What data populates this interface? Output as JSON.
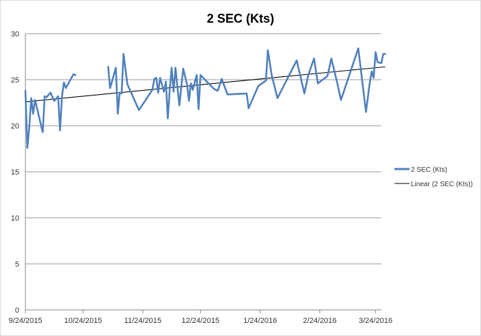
{
  "chart_data": {
    "type": "line",
    "title": "2 SEC (Kts)",
    "xlabel": "",
    "ylabel": "",
    "ylim": [
      0,
      30
    ],
    "yticks": [
      0,
      5,
      10,
      15,
      20,
      25,
      30
    ],
    "xlim": [
      "2015-09-24",
      "2016-03-27"
    ],
    "xticks": [
      "2015-09-24",
      "2015-10-24",
      "2015-11-24",
      "2015-12-24",
      "2016-01-24",
      "2016-02-24",
      "2016-03-24"
    ],
    "xtick_labels": [
      "9/24/2015",
      "10/24/2015",
      "11/24/2015",
      "12/24/2015",
      "1/24/2016",
      "2/24/2016",
      "3/24/2016"
    ],
    "grid": true,
    "legend_position": "right",
    "series": [
      {
        "name": "2 SEC (Kts)",
        "color": "#4f81bd",
        "points": [
          [
            "2015-09-24",
            23.8
          ],
          [
            "2015-09-25",
            17.6
          ],
          [
            "2015-09-26",
            19.8
          ],
          [
            "2015-09-27",
            23.0
          ],
          [
            "2015-09-28",
            21.3
          ],
          [
            "2015-09-29",
            22.8
          ],
          [
            "2015-10-03",
            19.3
          ],
          [
            "2015-10-04",
            23.2
          ],
          [
            "2015-10-05",
            23.1
          ],
          [
            "2015-10-07",
            23.6
          ],
          [
            "2015-10-09",
            22.7
          ],
          [
            "2015-10-11",
            23.2
          ],
          [
            "2015-10-12",
            19.5
          ],
          [
            "2015-10-13",
            23.2
          ],
          [
            "2015-10-14",
            24.7
          ],
          [
            "2015-10-15",
            24.1
          ],
          [
            "2015-10-19",
            25.6
          ],
          [
            "2015-10-20",
            25.5
          ],
          null,
          [
            "2015-11-06",
            26.4
          ],
          [
            "2015-11-07",
            24.1
          ],
          [
            "2015-11-10",
            26.3
          ],
          [
            "2015-11-11",
            21.3
          ],
          [
            "2015-11-12",
            23.6
          ],
          [
            "2015-11-13",
            23.5
          ],
          [
            "2015-11-14",
            27.8
          ],
          [
            "2015-11-16",
            24.5
          ],
          [
            "2015-11-22",
            21.7
          ],
          [
            "2015-11-29",
            23.9
          ],
          [
            "2015-11-30",
            25.1
          ],
          [
            "2015-12-01",
            25.2
          ],
          [
            "2015-12-02",
            23.6
          ],
          [
            "2015-12-03",
            25.2
          ],
          [
            "2015-12-05",
            23.7
          ],
          [
            "2015-12-06",
            24.8
          ],
          [
            "2015-12-07",
            20.8
          ],
          [
            "2015-12-08",
            23.9
          ],
          [
            "2015-12-09",
            26.3
          ],
          [
            "2015-12-10",
            23.7
          ],
          [
            "2015-12-11",
            26.3
          ],
          [
            "2015-12-13",
            22.2
          ],
          [
            "2015-12-15",
            26.2
          ],
          [
            "2015-12-17",
            24.5
          ],
          [
            "2015-12-18",
            22.7
          ],
          [
            "2015-12-19",
            24.6
          ],
          [
            "2015-12-20",
            23.9
          ],
          [
            "2015-12-22",
            25.5
          ],
          [
            "2015-12-23",
            21.8
          ],
          [
            "2015-12-24",
            25.5
          ],
          [
            "2015-12-31",
            24.0
          ],
          [
            "2016-01-02",
            23.8
          ],
          [
            "2016-01-04",
            25.1
          ],
          [
            "2016-01-07",
            23.4
          ],
          [
            "2016-01-17",
            23.5
          ],
          [
            "2016-01-18",
            21.9
          ],
          [
            "2016-01-23",
            24.3
          ],
          [
            "2016-01-27",
            24.9
          ],
          [
            "2016-01-28",
            28.2
          ],
          [
            "2016-01-30",
            25.5
          ],
          [
            "2016-02-02",
            23.0
          ],
          [
            "2016-02-12",
            27.1
          ],
          [
            "2016-02-16",
            23.5
          ],
          [
            "2016-02-18",
            25.5
          ],
          [
            "2016-02-21",
            27.3
          ],
          [
            "2016-02-23",
            24.6
          ],
          [
            "2016-02-28",
            25.4
          ],
          [
            "2016-03-01",
            27.3
          ],
          [
            "2016-03-04",
            24.7
          ],
          [
            "2016-03-06",
            22.8
          ],
          [
            "2016-03-15",
            28.4
          ],
          [
            "2016-03-19",
            21.5
          ],
          [
            "2016-03-21",
            24.7
          ],
          [
            "2016-03-22",
            25.9
          ],
          [
            "2016-03-23",
            25.2
          ],
          [
            "2016-03-24",
            28.0
          ],
          [
            "2016-03-25",
            26.9
          ],
          [
            "2016-03-27",
            26.8
          ],
          [
            "2016-03-28",
            27.8
          ],
          [
            "2016-03-29",
            27.8
          ]
        ]
      },
      {
        "name": "Linear (2 SEC (Kts))",
        "color": "#000000",
        "points": [
          [
            "2015-09-24",
            22.6
          ],
          [
            "2016-03-29",
            26.4
          ]
        ]
      }
    ]
  }
}
